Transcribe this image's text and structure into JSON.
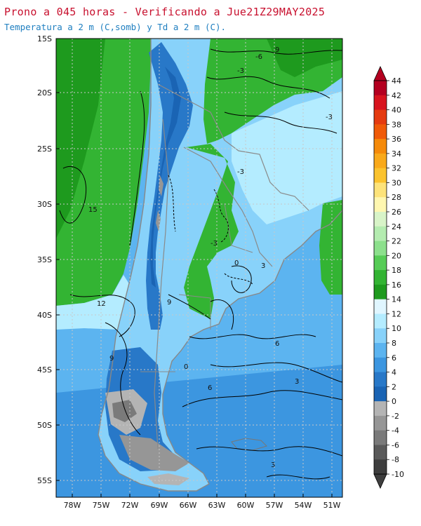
{
  "header": {
    "title": "Prono a 045 horas - Verificando a Jue21Z29MAY2025",
    "subtitle": "Temperatura a 2 m (C,somb) y Td a 2 m (C)."
  },
  "map": {
    "lat_labels": [
      "15S",
      "20S",
      "25S",
      "30S",
      "35S",
      "40S",
      "45S",
      "50S",
      "55S"
    ],
    "lon_labels": [
      "78W",
      "75W",
      "72W",
      "69W",
      "66W",
      "63W",
      "60W",
      "57W",
      "54W",
      "51W"
    ],
    "contour_labels": [
      "-6",
      "9",
      "-3",
      "-3",
      "15",
      "12",
      "-3",
      "0",
      "9",
      "3",
      "6",
      "6",
      "0",
      "-3",
      "3",
      "3",
      "9",
      "-3"
    ]
  },
  "colorbar": {
    "labels": [
      "44",
      "42",
      "40",
      "38",
      "36",
      "34",
      "32",
      "30",
      "28",
      "26",
      "24",
      "22",
      "20",
      "18",
      "16",
      "14",
      "12",
      "10",
      "8",
      "6",
      "4",
      "2",
      "0",
      "-2",
      "-4",
      "-6",
      "-8",
      "-10"
    ],
    "colors": [
      "#b40020",
      "#d8141e",
      "#e53b10",
      "#f05a08",
      "#f58a0a",
      "#f9a91a",
      "#fbc32e",
      "#fde37a",
      "#fff7b0",
      "#d8f4c8",
      "#b4ecb0",
      "#8ce08c",
      "#56cc56",
      "#33b433",
      "#1e9a1e",
      "#e0f6ff",
      "#b4ecff",
      "#88d2fa",
      "#5cb4f0",
      "#3c96e0",
      "#2878c8",
      "#1a64b4",
      "#b4b4b4",
      "#969696",
      "#7a7a7a",
      "#5a5a5a",
      "#3e3e3e"
    ]
  }
}
